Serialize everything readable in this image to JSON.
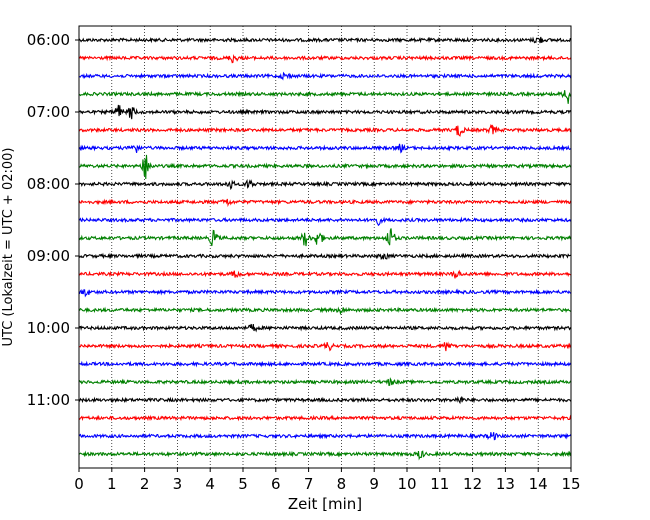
{
  "chart_data": {
    "type": "line",
    "subtype": "helicorder",
    "xlabel": "Zeit  [min]",
    "ylabel": "UTC (Lokalzeit = UTC + 02:00)",
    "xlim": [
      0,
      15
    ],
    "x_ticks": [
      0,
      1,
      2,
      3,
      4,
      5,
      6,
      7,
      8,
      9,
      10,
      11,
      12,
      13,
      14,
      15
    ],
    "x_grid": "dotted vertical lines at each minute",
    "y_tick_labels": [
      "06:00",
      "07:00",
      "08:00",
      "09:00",
      "10:00",
      "11:00"
    ],
    "trace_interval_minutes": 15,
    "trace_colors": [
      "#000000",
      "#ff0000",
      "#0000ff",
      "#008000"
    ],
    "traces": [
      {
        "start": "06:00",
        "events": [
          {
            "t": 14.0,
            "amp": 1.0
          }
        ]
      },
      {
        "start": "06:15",
        "events": [
          {
            "t": 4.7,
            "amp": 1.0
          }
        ]
      },
      {
        "start": "06:30",
        "events": [
          {
            "t": 6.3,
            "amp": 0.8
          }
        ]
      },
      {
        "start": "06:45",
        "events": [
          {
            "t": 14.9,
            "amp": 2.5
          }
        ]
      },
      {
        "start": "07:00",
        "events": [
          {
            "t": 1.2,
            "amp": 1.8
          },
          {
            "t": 1.6,
            "amp": 1.5
          }
        ]
      },
      {
        "start": "07:15",
        "events": [
          {
            "t": 11.6,
            "amp": 1.5
          },
          {
            "t": 12.6,
            "amp": 1.0
          }
        ]
      },
      {
        "start": "07:30",
        "events": [
          {
            "t": 1.7,
            "amp": 1.3
          },
          {
            "t": 9.8,
            "amp": 0.8
          }
        ]
      },
      {
        "start": "07:45",
        "events": [
          {
            "t": 2.05,
            "amp": 3.2
          }
        ]
      },
      {
        "start": "08:00",
        "events": [
          {
            "t": 4.6,
            "amp": 1.0
          },
          {
            "t": 5.2,
            "amp": 1.0
          }
        ]
      },
      {
        "start": "08:15",
        "events": [
          {
            "t": 4.5,
            "amp": 0.8
          }
        ]
      },
      {
        "start": "08:30",
        "events": [
          {
            "t": 9.1,
            "amp": 1.0
          }
        ]
      },
      {
        "start": "08:45",
        "events": [
          {
            "t": 4.1,
            "amp": 2.0
          },
          {
            "t": 6.9,
            "amp": 1.8
          },
          {
            "t": 7.3,
            "amp": 2.0
          },
          {
            "t": 9.5,
            "amp": 2.6
          }
        ]
      },
      {
        "start": "09:00",
        "events": [
          {
            "t": 9.3,
            "amp": 0.7
          }
        ]
      },
      {
        "start": "09:15",
        "events": [
          {
            "t": 4.8,
            "amp": 0.8
          },
          {
            "t": 11.5,
            "amp": 1.0
          }
        ]
      },
      {
        "start": "09:30",
        "events": [
          {
            "t": 0.2,
            "amp": 0.8
          }
        ]
      },
      {
        "start": "09:45",
        "events": [
          {
            "t": 8.0,
            "amp": 0.7
          }
        ]
      },
      {
        "start": "10:00",
        "events": [
          {
            "t": 5.3,
            "amp": 0.8
          }
        ]
      },
      {
        "start": "10:15",
        "events": [
          {
            "t": 7.6,
            "amp": 0.9
          },
          {
            "t": 11.2,
            "amp": 1.2
          }
        ]
      },
      {
        "start": "10:30",
        "events": []
      },
      {
        "start": "10:45",
        "events": [
          {
            "t": 9.5,
            "amp": 0.7
          }
        ]
      },
      {
        "start": "11:00",
        "events": [
          {
            "t": 11.6,
            "amp": 0.7
          }
        ]
      },
      {
        "start": "11:15",
        "events": []
      },
      {
        "start": "11:30",
        "events": [
          {
            "t": 12.6,
            "amp": 1.0
          }
        ]
      },
      {
        "start": "11:45",
        "events": [
          {
            "t": 10.4,
            "amp": 0.9
          }
        ]
      }
    ]
  }
}
